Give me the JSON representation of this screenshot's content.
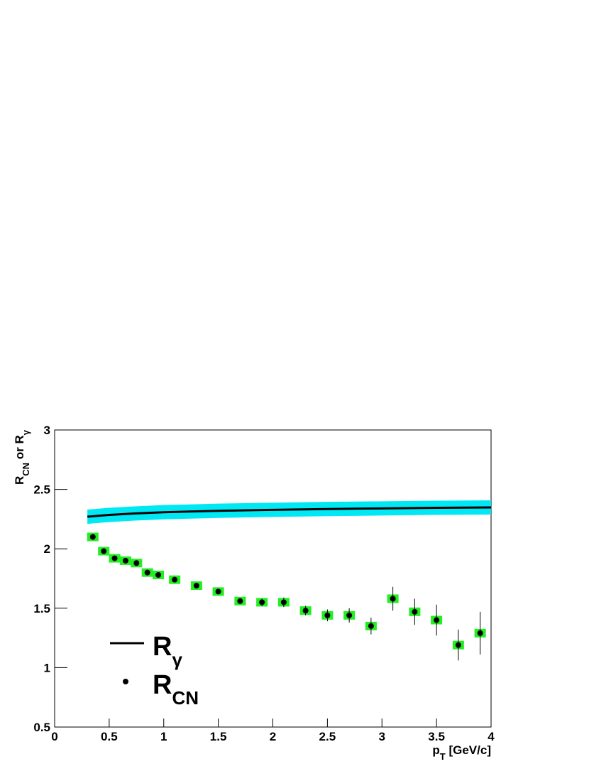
{
  "chart_data": {
    "type": "scatter",
    "xlim": [
      0,
      4
    ],
    "ylim": [
      0.5,
      3
    ],
    "xticks": [
      0,
      0.5,
      1,
      1.5,
      2,
      2.5,
      3,
      3.5,
      4
    ],
    "yticks": [
      0.5,
      1,
      1.5,
      2,
      2.5,
      3
    ],
    "xlabel": [
      "p",
      "T",
      " [GeV/c]"
    ],
    "ylabel": [
      "R",
      "CN",
      " or R",
      "γ"
    ],
    "series": [
      {
        "name": "R",
        "name_sub": "γ",
        "type": "line",
        "color": "#000000",
        "band_color": "#00e8f4",
        "x": [
          0.3,
          0.5,
          0.75,
          1,
          1.5,
          2,
          2.5,
          3,
          3.5,
          4
        ],
        "values": [
          2.27,
          2.285,
          2.298,
          2.308,
          2.32,
          2.328,
          2.335,
          2.34,
          2.345,
          2.348
        ],
        "errors": [
          0.06,
          0.06,
          0.06,
          0.06,
          0.06,
          0.06,
          0.06,
          0.06,
          0.06,
          0.06
        ]
      },
      {
        "name": "R",
        "name_sub": "CN",
        "type": "scatter",
        "color": "#000000",
        "box_color": "#22ee22",
        "x": [
          0.35,
          0.45,
          0.55,
          0.65,
          0.75,
          0.85,
          0.95,
          1.1,
          1.3,
          1.5,
          1.7,
          1.9,
          2.1,
          2.3,
          2.5,
          2.7,
          2.9,
          3.1,
          3.3,
          3.5,
          3.7,
          3.9
        ],
        "values": [
          2.1,
          1.98,
          1.92,
          1.9,
          1.88,
          1.8,
          1.78,
          1.74,
          1.69,
          1.64,
          1.56,
          1.55,
          1.55,
          1.48,
          1.44,
          1.44,
          1.35,
          1.58,
          1.47,
          1.4,
          1.19,
          1.29
        ],
        "errors": [
          0.01,
          0.01,
          0.01,
          0.01,
          0.01,
          0.01,
          0.01,
          0.02,
          0.02,
          0.02,
          0.02,
          0.03,
          0.04,
          0.04,
          0.05,
          0.06,
          0.07,
          0.1,
          0.11,
          0.13,
          0.13,
          0.18
        ]
      }
    ]
  }
}
